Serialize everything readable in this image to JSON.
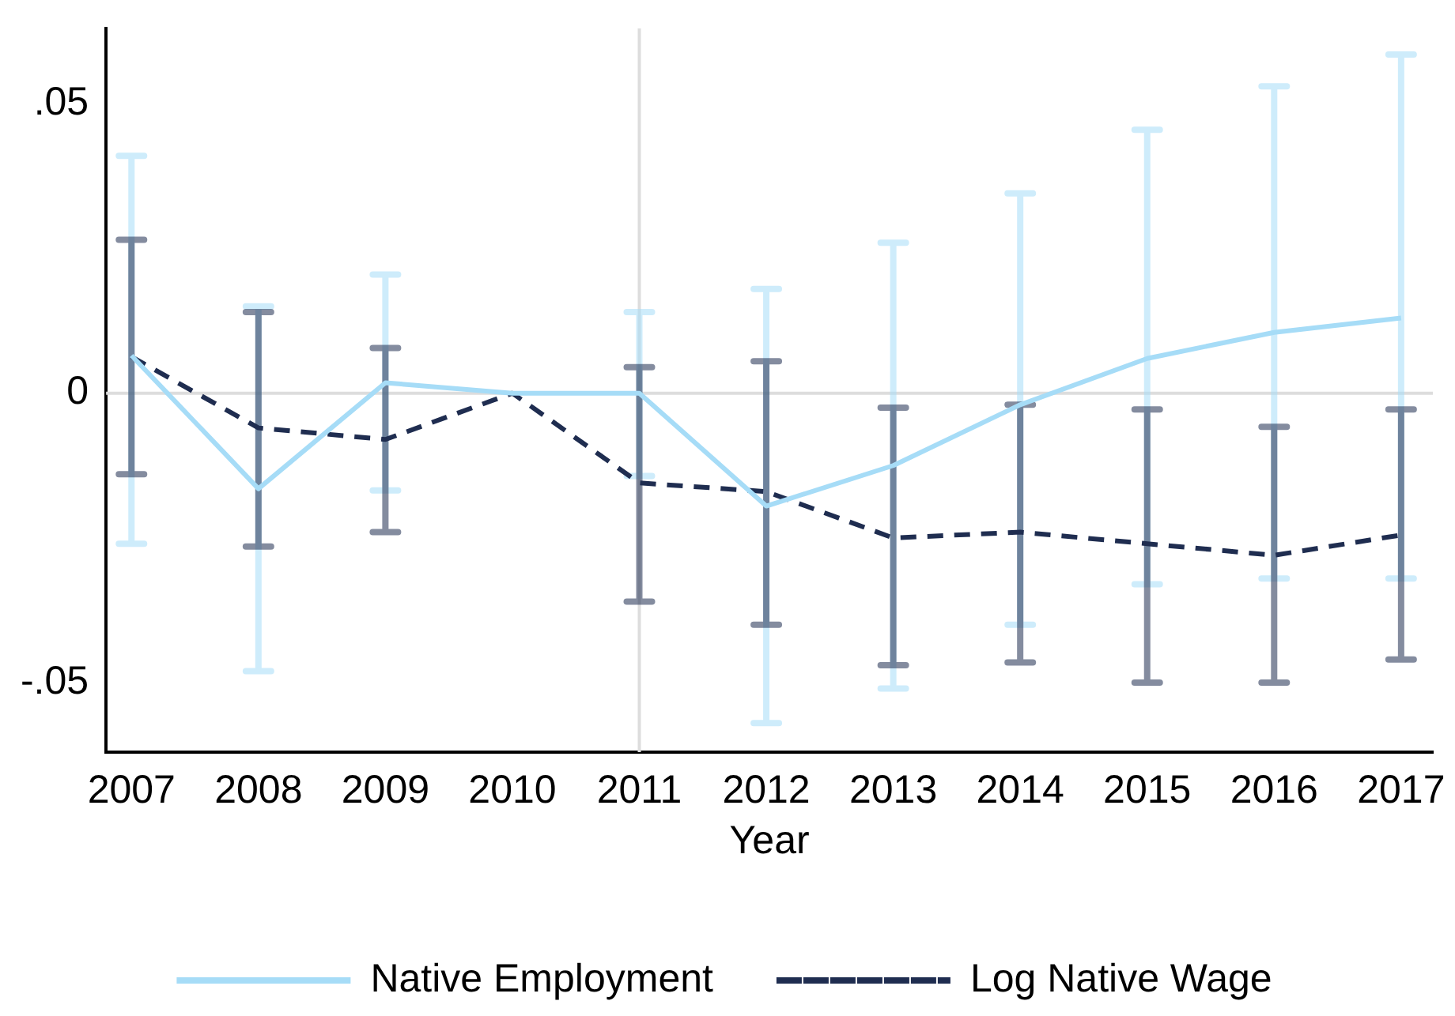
{
  "chart_data": {
    "type": "line",
    "xlabel": "Year",
    "x": [
      2007,
      2008,
      2009,
      2010,
      2011,
      2012,
      2013,
      2014,
      2015,
      2016,
      2017
    ],
    "xlim": [
      2006.8,
      2017.25
    ],
    "xticks": [
      2007,
      2008,
      2009,
      2010,
      2011,
      2012,
      2013,
      2014,
      2015,
      2016,
      2017
    ],
    "ylim": [
      -0.062,
      0.063
    ],
    "yticks": [
      {
        "value": -0.05,
        "label": "-.05"
      },
      {
        "value": 0,
        "label": "0"
      },
      {
        "value": 0.05,
        "label": ".05"
      }
    ],
    "series": [
      {
        "name": "Native Employment",
        "color": "#a6dcf7",
        "line_style": "solid",
        "values": [
          0.0065,
          -0.0165,
          0.0018,
          0,
          0,
          -0.0195,
          -0.0125,
          -0.002,
          0.006,
          0.0105,
          0.013
        ],
        "errors": [
          [
            -0.026,
            0.041
          ],
          [
            -0.048,
            0.015
          ],
          [
            -0.0168,
            0.0205
          ],
          null,
          [
            -0.0143,
            0.014
          ],
          [
            -0.057,
            0.018
          ],
          [
            -0.051,
            0.026
          ],
          [
            -0.04,
            0.0345
          ],
          [
            -0.033,
            0.0455
          ],
          [
            -0.032,
            0.053
          ],
          [
            -0.032,
            0.0585
          ]
        ]
      },
      {
        "name": "Log Native Wage",
        "color": "#1f2d50",
        "line_style": "dashed",
        "values": [
          0.0063,
          -0.006,
          -0.008,
          0,
          -0.0155,
          -0.017,
          -0.025,
          -0.024,
          -0.026,
          -0.028,
          -0.0245
        ],
        "errors": [
          [
            -0.014,
            0.0265
          ],
          [
            -0.0265,
            0.014
          ],
          [
            -0.024,
            0.0078
          ],
          null,
          [
            -0.036,
            0.0045
          ],
          [
            -0.04,
            0.0055
          ],
          [
            -0.047,
            -0.0025
          ],
          [
            -0.0465,
            -0.002
          ],
          [
            -0.05,
            -0.0028
          ],
          [
            -0.05,
            -0.0058
          ],
          [
            -0.046,
            -0.0028
          ]
        ]
      }
    ],
    "ref_lines": [
      {
        "axis": "y",
        "value": 0,
        "color": "#dddddd"
      },
      {
        "axis": "x",
        "value": 2011,
        "color": "#dddddd"
      }
    ],
    "legend": "bottom",
    "grid": false,
    "marker": "none"
  }
}
